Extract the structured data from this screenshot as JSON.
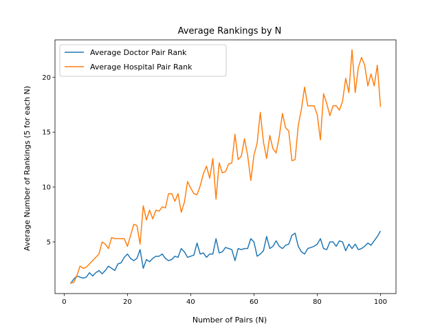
{
  "chart_data": {
    "type": "line",
    "title": "Average Rankings by N",
    "xlabel": "Number of Pairs (N)",
    "ylabel": "Average Number of Rankings (5 for each N)",
    "xlim": [
      -2.9,
      104.9
    ],
    "ylim": [
      0.3,
      23.4
    ],
    "xticks": [
      0,
      20,
      40,
      60,
      80,
      100
    ],
    "yticks": [
      5,
      10,
      15,
      20
    ],
    "grid": false,
    "legend": "upper-left",
    "x": [
      2,
      3,
      4,
      5,
      6,
      7,
      8,
      9,
      10,
      11,
      12,
      13,
      14,
      15,
      16,
      17,
      18,
      19,
      20,
      21,
      22,
      23,
      24,
      25,
      26,
      27,
      28,
      29,
      30,
      31,
      32,
      33,
      34,
      35,
      36,
      37,
      38,
      39,
      40,
      41,
      42,
      43,
      44,
      45,
      46,
      47,
      48,
      49,
      50,
      51,
      52,
      53,
      54,
      55,
      56,
      57,
      58,
      59,
      60,
      61,
      62,
      63,
      64,
      65,
      66,
      67,
      68,
      69,
      70,
      71,
      72,
      73,
      74,
      75,
      76,
      77,
      78,
      79,
      80,
      81,
      82,
      83,
      84,
      85,
      86,
      87,
      88,
      89,
      90,
      91,
      92,
      93,
      94,
      95,
      96,
      97,
      98,
      99,
      100
    ],
    "series": [
      {
        "name": "Average Doctor Pair Rank",
        "color": "#1f77b4",
        "values": [
          1.2,
          1.6,
          1.9,
          1.8,
          1.7,
          1.8,
          2.2,
          1.9,
          2.2,
          2.4,
          2.1,
          2.4,
          2.8,
          2.6,
          2.4,
          3.0,
          3.1,
          3.6,
          3.9,
          3.5,
          3.3,
          3.5,
          4.3,
          2.6,
          3.4,
          3.2,
          3.5,
          3.7,
          3.7,
          3.9,
          3.5,
          3.3,
          3.4,
          3.7,
          3.6,
          4.4,
          4.1,
          3.6,
          3.7,
          3.8,
          4.9,
          3.9,
          4.0,
          3.6,
          3.9,
          3.9,
          5.3,
          4.0,
          4.1,
          4.5,
          4.4,
          4.3,
          3.3,
          4.4,
          4.3,
          4.4,
          4.4,
          5.3,
          5.0,
          3.7,
          3.9,
          4.2,
          5.5,
          4.4,
          4.6,
          5.1,
          4.6,
          4.4,
          4.7,
          4.8,
          5.6,
          5.8,
          4.6,
          4.1,
          3.9,
          4.4,
          4.5,
          4.6,
          4.8,
          5.3,
          4.4,
          4.3,
          5.0,
          5.0,
          4.6,
          5.1,
          5.0,
          4.2,
          4.8,
          4.4,
          4.8,
          4.3,
          4.4,
          4.6,
          4.9,
          4.7,
          5.1,
          5.5,
          6.0
        ]
      },
      {
        "name": "Average Hospital Pair Rank",
        "color": "#ff7f0e",
        "values": [
          1.3,
          1.3,
          1.9,
          2.8,
          2.6,
          2.7,
          3.0,
          3.3,
          3.6,
          3.9,
          5.0,
          4.8,
          4.4,
          5.4,
          5.3,
          5.3,
          5.3,
          5.3,
          4.6,
          5.6,
          6.6,
          6.5,
          4.8,
          8.3,
          7.0,
          7.9,
          7.1,
          7.9,
          7.8,
          8.2,
          8.1,
          9.4,
          9.4,
          8.7,
          9.4,
          7.7,
          8.6,
          10.5,
          9.9,
          9.4,
          9.3,
          10.1,
          11.2,
          11.9,
          10.8,
          12.6,
          8.9,
          12.2,
          11.3,
          11.4,
          12.1,
          12.2,
          14.8,
          12.5,
          12.8,
          14.4,
          12.9,
          10.6,
          12.9,
          14.0,
          16.8,
          14.1,
          12.6,
          14.7,
          13.5,
          13.1,
          14.6,
          16.7,
          15.4,
          15.1,
          12.4,
          12.5,
          15.6,
          17.1,
          19.1,
          17.4,
          17.4,
          17.4,
          16.6,
          14.3,
          18.5,
          17.6,
          16.5,
          17.4,
          17.4,
          17.0,
          17.8,
          19.9,
          18.6,
          22.5,
          18.6,
          20.9,
          21.8,
          21.1,
          19.2,
          20.3,
          19.2,
          21.1,
          17.3
        ]
      }
    ]
  }
}
